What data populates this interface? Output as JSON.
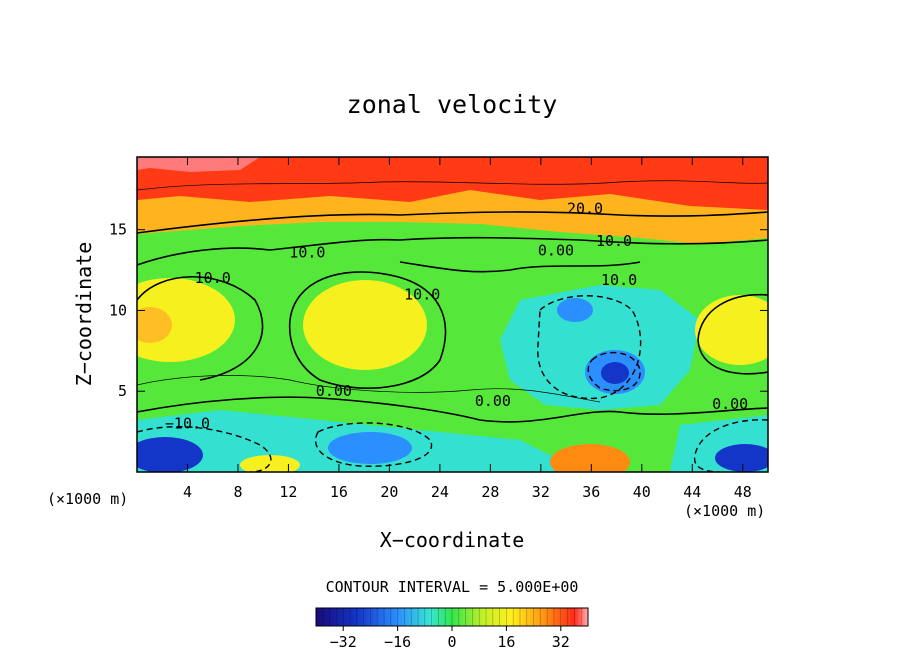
{
  "chart_data": {
    "type": "heatmap",
    "title": "zonal velocity",
    "xlabel": "X−coordinate",
    "ylabel": "Z−coordinate",
    "x_unit": "(×1000 m)",
    "x_ticks": [
      "4",
      "8",
      "12",
      "16",
      "20",
      "24",
      "28",
      "32",
      "36",
      "40",
      "44",
      "48"
    ],
    "x_tick_values": [
      4,
      8,
      12,
      16,
      20,
      24,
      28,
      32,
      36,
      40,
      44,
      48
    ],
    "y_ticks": [
      "5",
      "10",
      "15"
    ],
    "y_tick_values": [
      5,
      10,
      15
    ],
    "xlim": [
      0,
      50
    ],
    "ylim": [
      0,
      19.5
    ],
    "contour_interval_text": "CONTOUR INTERVAL = 5.000E+00",
    "colorbar": {
      "min": -40,
      "max": 40,
      "ticks": [
        "−32",
        "−16",
        "0",
        "16",
        "32"
      ],
      "tick_values": [
        -32,
        -16,
        0,
        16,
        32
      ]
    },
    "contour_labels": [
      {
        "text": "20.0",
        "x": 35.5,
        "y": 16.3
      },
      {
        "text": "10.0",
        "x": 13.5,
        "y": 13.6
      },
      {
        "text": "10.0",
        "x": 37.8,
        "y": 14.3
      },
      {
        "text": "10.0",
        "x": 6.0,
        "y": 12.0
      },
      {
        "text": "10.0",
        "x": 22.6,
        "y": 11.0
      },
      {
        "text": "10.0",
        "x": 38.2,
        "y": 11.9
      },
      {
        "text": "0.00",
        "x": 33.2,
        "y": 13.7
      },
      {
        "text": "0.00",
        "x": 15.6,
        "y": 5.0
      },
      {
        "text": "0.00",
        "x": 28.2,
        "y": 4.4
      },
      {
        "text": "0.00",
        "x": 47.0,
        "y": 4.2
      },
      {
        "text": "−10.0",
        "x": 4.0,
        "y": 3.0
      }
    ]
  }
}
